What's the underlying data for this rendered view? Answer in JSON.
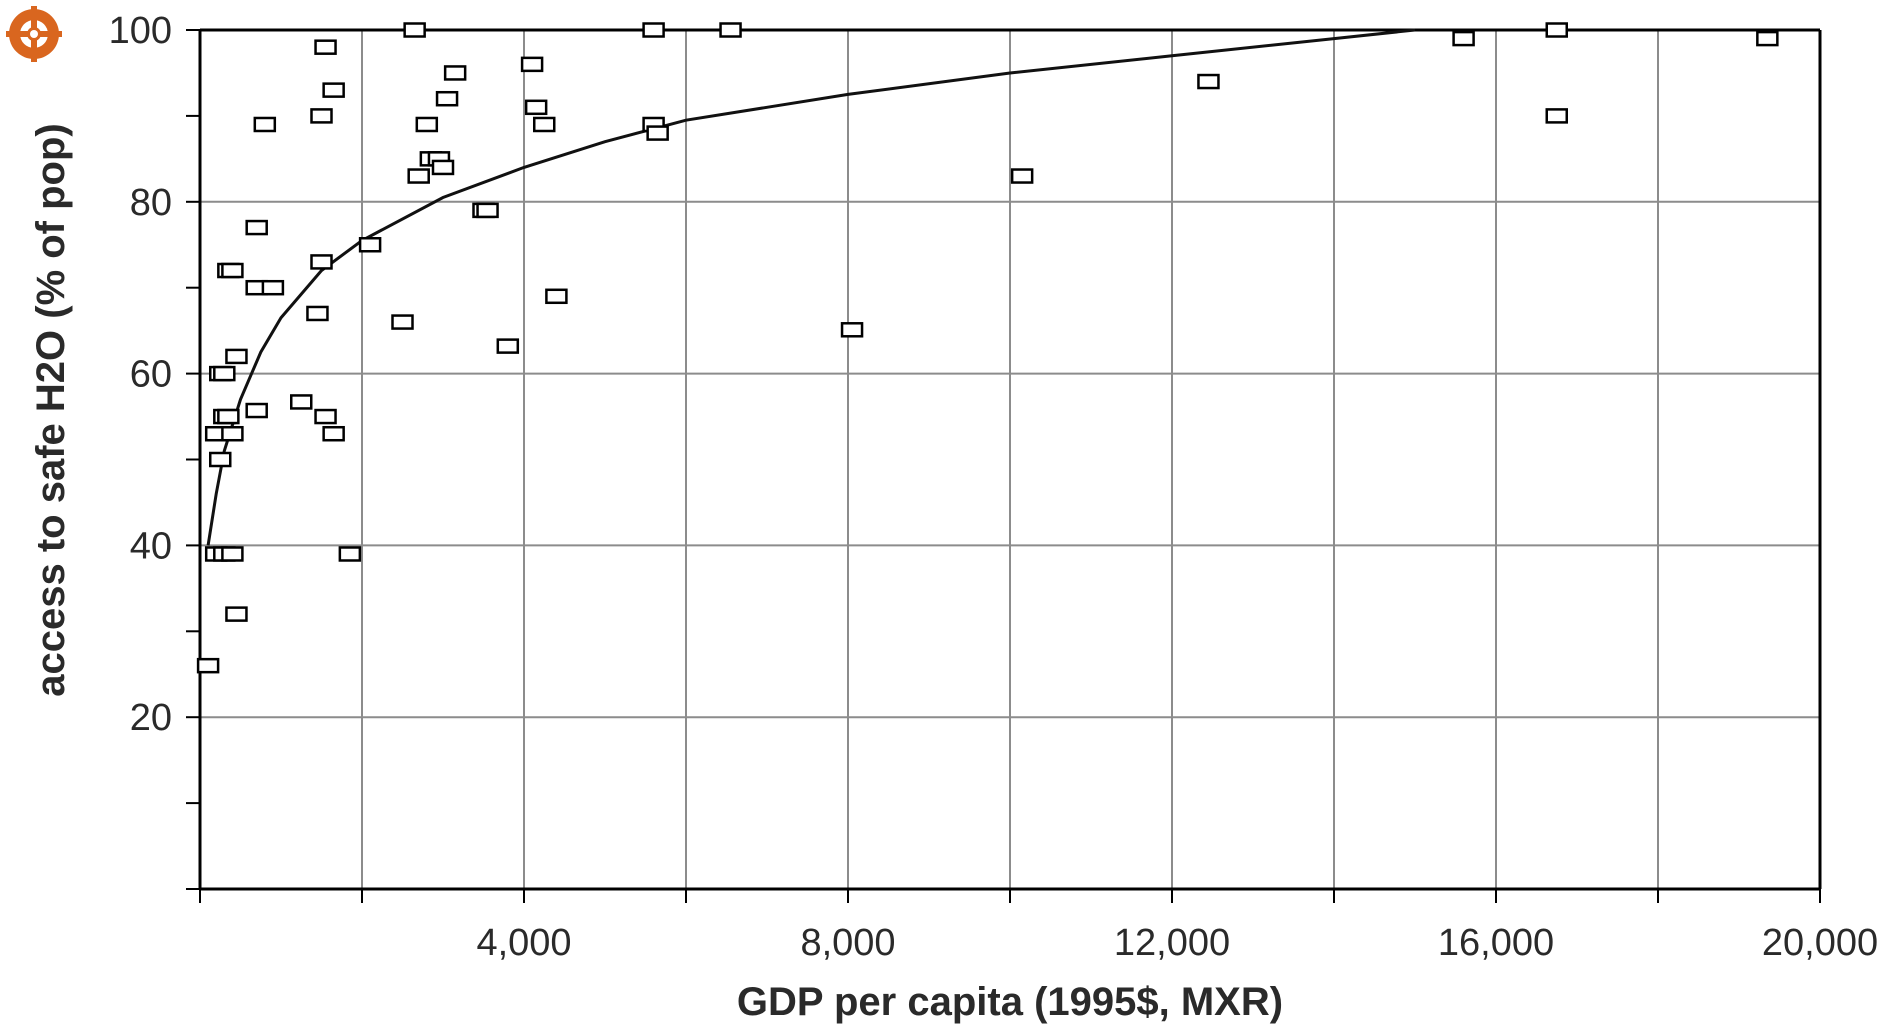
{
  "chart_data": {
    "type": "scatter",
    "title": "",
    "xlabel": "GDP per capita (1995$, MXR)",
    "ylabel": "access to safe H2O (% of pop)",
    "xlim": [
      0,
      20000
    ],
    "ylim": [
      0,
      100
    ],
    "x_ticks": [
      {
        "value": 4000,
        "label": "4,000"
      },
      {
        "value": 8000,
        "label": "8,000"
      },
      {
        "value": 12000,
        "label": "12,000"
      },
      {
        "value": 16000,
        "label": "16,000"
      },
      {
        "value": 20000,
        "label": "20,000"
      }
    ],
    "y_ticks": [
      {
        "value": 20,
        "label": "20"
      },
      {
        "value": 40,
        "label": "40"
      },
      {
        "value": 60,
        "label": "60"
      },
      {
        "value": 80,
        "label": "80"
      },
      {
        "value": 100,
        "label": "100"
      }
    ],
    "grid": true,
    "marker": "open-square",
    "points": [
      {
        "x": 100,
        "y": 26
      },
      {
        "x": 200,
        "y": 39
      },
      {
        "x": 300,
        "y": 39
      },
      {
        "x": 400,
        "y": 39
      },
      {
        "x": 450,
        "y": 32
      },
      {
        "x": 250,
        "y": 50
      },
      {
        "x": 200,
        "y": 53
      },
      {
        "x": 400,
        "y": 53
      },
      {
        "x": 300,
        "y": 55
      },
      {
        "x": 350,
        "y": 55
      },
      {
        "x": 250,
        "y": 60
      },
      {
        "x": 300,
        "y": 60
      },
      {
        "x": 450,
        "y": 62
      },
      {
        "x": 350,
        "y": 72
      },
      {
        "x": 400,
        "y": 72
      },
      {
        "x": 700,
        "y": 70
      },
      {
        "x": 900,
        "y": 70
      },
      {
        "x": 700,
        "y": 77
      },
      {
        "x": 700,
        "y": 55.7
      },
      {
        "x": 800,
        "y": 89
      },
      {
        "x": 1250,
        "y": 56.7
      },
      {
        "x": 1450,
        "y": 67
      },
      {
        "x": 1500,
        "y": 73
      },
      {
        "x": 1550,
        "y": 55
      },
      {
        "x": 1650,
        "y": 53
      },
      {
        "x": 1850,
        "y": 39
      },
      {
        "x": 1500,
        "y": 90
      },
      {
        "x": 1650,
        "y": 93
      },
      {
        "x": 1550,
        "y": 98
      },
      {
        "x": 2100,
        "y": 75
      },
      {
        "x": 2500,
        "y": 66
      },
      {
        "x": 2650,
        "y": 100
      },
      {
        "x": 2700,
        "y": 83
      },
      {
        "x": 2800,
        "y": 89
      },
      {
        "x": 2850,
        "y": 85
      },
      {
        "x": 2950,
        "y": 85
      },
      {
        "x": 3000,
        "y": 84
      },
      {
        "x": 3050,
        "y": 92
      },
      {
        "x": 3150,
        "y": 95
      },
      {
        "x": 3500,
        "y": 79
      },
      {
        "x": 3550,
        "y": 79
      },
      {
        "x": 3800,
        "y": 63.2
      },
      {
        "x": 4100,
        "y": 96
      },
      {
        "x": 4150,
        "y": 91
      },
      {
        "x": 4250,
        "y": 89
      },
      {
        "x": 4400,
        "y": 69
      },
      {
        "x": 5600,
        "y": 100
      },
      {
        "x": 5600,
        "y": 89
      },
      {
        "x": 5650,
        "y": 88
      },
      {
        "x": 6550,
        "y": 100
      },
      {
        "x": 8050,
        "y": 65.1
      },
      {
        "x": 10150,
        "y": 83
      },
      {
        "x": 12450,
        "y": 94
      },
      {
        "x": 15600,
        "y": 99
      },
      {
        "x": 16750,
        "y": 100
      },
      {
        "x": 16750,
        "y": 90
      },
      {
        "x": 19350,
        "y": 99
      }
    ],
    "trendline": {
      "type": "logarithmic",
      "points": [
        {
          "x": 100,
          "y": 40
        },
        {
          "x": 200,
          "y": 46
        },
        {
          "x": 300,
          "y": 51
        },
        {
          "x": 500,
          "y": 57
        },
        {
          "x": 750,
          "y": 62.5
        },
        {
          "x": 1000,
          "y": 66.5
        },
        {
          "x": 1500,
          "y": 72
        },
        {
          "x": 2000,
          "y": 75.5
        },
        {
          "x": 3000,
          "y": 80.5
        },
        {
          "x": 4000,
          "y": 84
        },
        {
          "x": 5000,
          "y": 87
        },
        {
          "x": 6000,
          "y": 89.5
        },
        {
          "x": 7000,
          "y": 91
        },
        {
          "x": 8000,
          "y": 92.5
        },
        {
          "x": 10000,
          "y": 95
        },
        {
          "x": 12000,
          "y": 97
        },
        {
          "x": 14000,
          "y": 99
        },
        {
          "x": 15000,
          "y": 100
        }
      ]
    }
  },
  "logo": {
    "icon": "crosshair-badge-icon",
    "color": "#d9661f"
  },
  "colors": {
    "grid": "#8c8c8c",
    "axis": "#000000",
    "marker": "#000000",
    "trend": "#111111"
  }
}
